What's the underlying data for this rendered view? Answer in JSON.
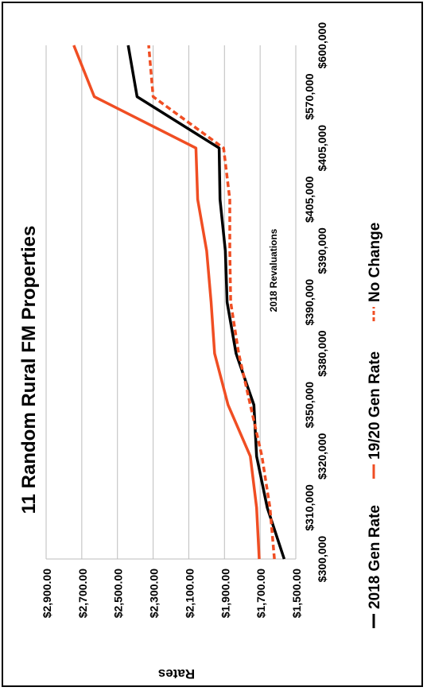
{
  "chart_data": {
    "type": "line",
    "title": "11 Random Rural FM Properties",
    "ylabel": "Rates",
    "annotation": "2018 Revaluations",
    "categories": [
      "$300,000",
      "$310,000",
      "$320,000",
      "$350,000",
      "$380,000",
      "$390,000",
      "$390,000",
      "$405,000",
      "$405,000",
      "$570,000",
      "$600,000"
    ],
    "ylim": [
      1500,
      2900
    ],
    "yticks": [
      "$1,500.00",
      "$1,700.00",
      "$1,900.00",
      "$2,100.00",
      "$2,300.00",
      "$2,500.00",
      "$2,700.00",
      "$2,900.00"
    ],
    "ytick_values": [
      1500,
      1700,
      1900,
      2100,
      2300,
      2500,
      2700,
      2900
    ],
    "grid": true,
    "legend_position": "bottom",
    "series": [
      {
        "name": "2018 Gen Rate",
        "color": "#000000",
        "dash": false,
        "values": [
          1565,
          1660,
          1720,
          1735,
          1835,
          1885,
          1895,
          1925,
          1930,
          2390,
          2440
        ]
      },
      {
        "name": "19/20 Gen Rate",
        "color": "#f04e23",
        "dash": false,
        "values": [
          1705,
          1720,
          1755,
          1880,
          1955,
          1975,
          2000,
          2050,
          2060,
          2630,
          2745
        ]
      },
      {
        "name": "No Change",
        "color": "#f04e23",
        "dash": true,
        "values": [
          1620,
          1645,
          1690,
          1755,
          1820,
          1865,
          1870,
          1870,
          1905,
          2300,
          2325
        ]
      }
    ]
  }
}
